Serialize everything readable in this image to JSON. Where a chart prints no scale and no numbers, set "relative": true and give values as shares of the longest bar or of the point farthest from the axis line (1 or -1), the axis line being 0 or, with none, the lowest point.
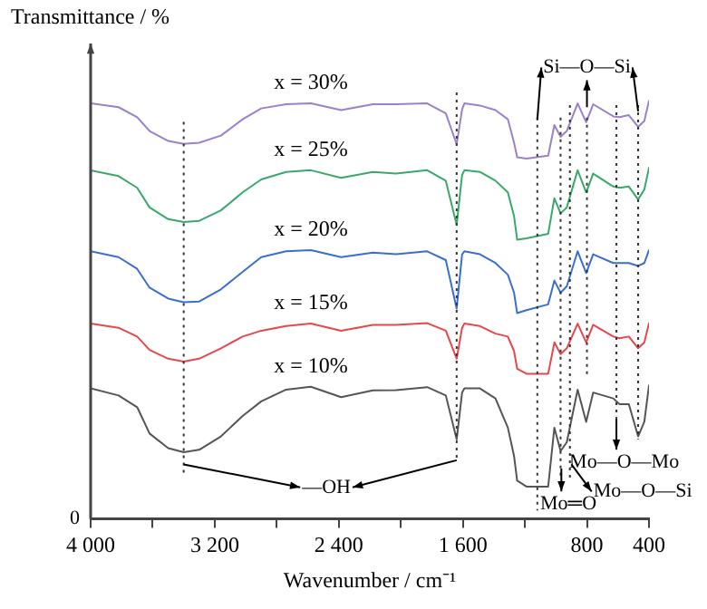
{
  "chart_data": {
    "type": "line",
    "relative": true,
    "xlabel": "Wavenumber / cm⁻¹",
    "ylabel": "Transmittance / %",
    "x": [
      4000,
      3820,
      3700,
      3620,
      3500,
      3400,
      3300,
      3160,
      3020,
      2900,
      2740,
      2580,
      2385,
      2180,
      2030,
      1830,
      1710,
      1640,
      1605,
      1590,
      1490,
      1390,
      1310,
      1270,
      1250,
      1190,
      1050,
      1010,
      970,
      930,
      860,
      805,
      760,
      630,
      590,
      530,
      470,
      430,
      400
    ],
    "xlim": [
      4000,
      400
    ],
    "xticks": [
      {
        "value": 4000,
        "label": "4 000"
      },
      {
        "value": 3600,
        "label": null
      },
      {
        "value": 3200,
        "label": "3 200"
      },
      {
        "value": 2800,
        "label": null
      },
      {
        "value": 2400,
        "label": "2 400"
      },
      {
        "value": 2000,
        "label": null
      },
      {
        "value": 1600,
        "label": "1 600"
      },
      {
        "value": 1200,
        "label": null
      },
      800,
      400
    ],
    "series": [
      {
        "name": "x = 30%",
        "color": "#9b80cc",
        "values": [
          0.994,
          0.985,
          0.961,
          0.928,
          0.904,
          0.897,
          0.9,
          0.917,
          0.956,
          0.982,
          0.992,
          0.994,
          0.978,
          0.992,
          0.992,
          0.994,
          0.97,
          0.896,
          0.98,
          0.994,
          0.989,
          0.978,
          0.956,
          0.9,
          0.865,
          0.862,
          0.869,
          0.942,
          0.914,
          0.928,
          0.994,
          0.949,
          0.992,
          0.963,
          0.961,
          0.966,
          0.938,
          0.952,
          1.0
        ]
      },
      {
        "name": "x = 25%",
        "color": "#3aa86a",
        "values": [
          0.834,
          0.82,
          0.792,
          0.745,
          0.717,
          0.71,
          0.713,
          0.738,
          0.781,
          0.812,
          0.83,
          0.834,
          0.816,
          0.83,
          0.826,
          0.834,
          0.809,
          0.703,
          0.823,
          0.834,
          0.83,
          0.809,
          0.781,
          0.724,
          0.668,
          0.671,
          0.682,
          0.767,
          0.731,
          0.745,
          0.834,
          0.781,
          0.826,
          0.795,
          0.792,
          0.795,
          0.764,
          0.788,
          0.84
        ]
      },
      {
        "name": "x = 20%",
        "color": "#3a6fd0",
        "values": [
          0.64,
          0.626,
          0.598,
          0.553,
          0.527,
          0.518,
          0.52,
          0.549,
          0.591,
          0.626,
          0.64,
          0.643,
          0.626,
          0.637,
          0.633,
          0.64,
          0.619,
          0.503,
          0.633,
          0.64,
          0.633,
          0.612,
          0.584,
          0.541,
          0.492,
          0.499,
          0.513,
          0.57,
          0.541,
          0.556,
          0.64,
          0.588,
          0.633,
          0.612,
          0.612,
          0.612,
          0.605,
          0.612,
          0.643
        ]
      },
      {
        "name": "x = 15%",
        "color": "#e8474a",
        "values": [
          0.467,
          0.457,
          0.436,
          0.404,
          0.383,
          0.376,
          0.383,
          0.408,
          0.436,
          0.45,
          0.461,
          0.467,
          0.45,
          0.464,
          0.464,
          0.468,
          0.45,
          0.383,
          0.457,
          0.467,
          0.461,
          0.443,
          0.436,
          0.401,
          0.359,
          0.347,
          0.347,
          0.422,
          0.394,
          0.408,
          0.467,
          0.422,
          0.464,
          0.436,
          0.432,
          0.436,
          0.408,
          0.422,
          0.468
        ]
      },
      {
        "name": "x = 10%",
        "color": "#555555",
        "values": [
          0.312,
          0.295,
          0.267,
          0.204,
          0.169,
          0.159,
          0.165,
          0.197,
          0.246,
          0.281,
          0.309,
          0.316,
          0.291,
          0.307,
          0.308,
          0.315,
          0.295,
          0.19,
          0.302,
          0.312,
          0.312,
          0.288,
          0.218,
          0.15,
          0.091,
          0.077,
          0.077,
          0.218,
          0.162,
          0.183,
          0.309,
          0.232,
          0.302,
          0.288,
          0.274,
          0.274,
          0.197,
          0.232,
          0.319
        ]
      }
    ],
    "ref_lines": [
      {
        "axis": "x",
        "value": 3400,
        "color": "#333333",
        "line_style": "dotted"
      },
      {
        "axis": "x",
        "value": 1640,
        "color": "#333333",
        "line_style": "dotted"
      },
      {
        "axis": "x",
        "value": 1120,
        "color": "#333333",
        "line_style": "dotted"
      },
      {
        "axis": "x",
        "value": 970,
        "color": "#333333",
        "line_style": "dotted"
      },
      {
        "axis": "x",
        "value": 910,
        "color": "#333333",
        "line_style": "dotted"
      },
      {
        "axis": "x",
        "value": 800,
        "color": "#333333",
        "line_style": "dotted"
      },
      {
        "axis": "x",
        "value": 610,
        "color": "#333333",
        "line_style": "dotted"
      },
      {
        "axis": "x",
        "value": 470,
        "color": "#333333",
        "line_style": "dotted"
      }
    ],
    "annotations": [
      "0",
      "—OH",
      "Si—O—Si",
      "Mo═O",
      "Mo—O—Mo",
      "Mo—O—Si"
    ],
    "legend": false,
    "grid": false,
    "marker": "none",
    "line_style": "solid"
  }
}
